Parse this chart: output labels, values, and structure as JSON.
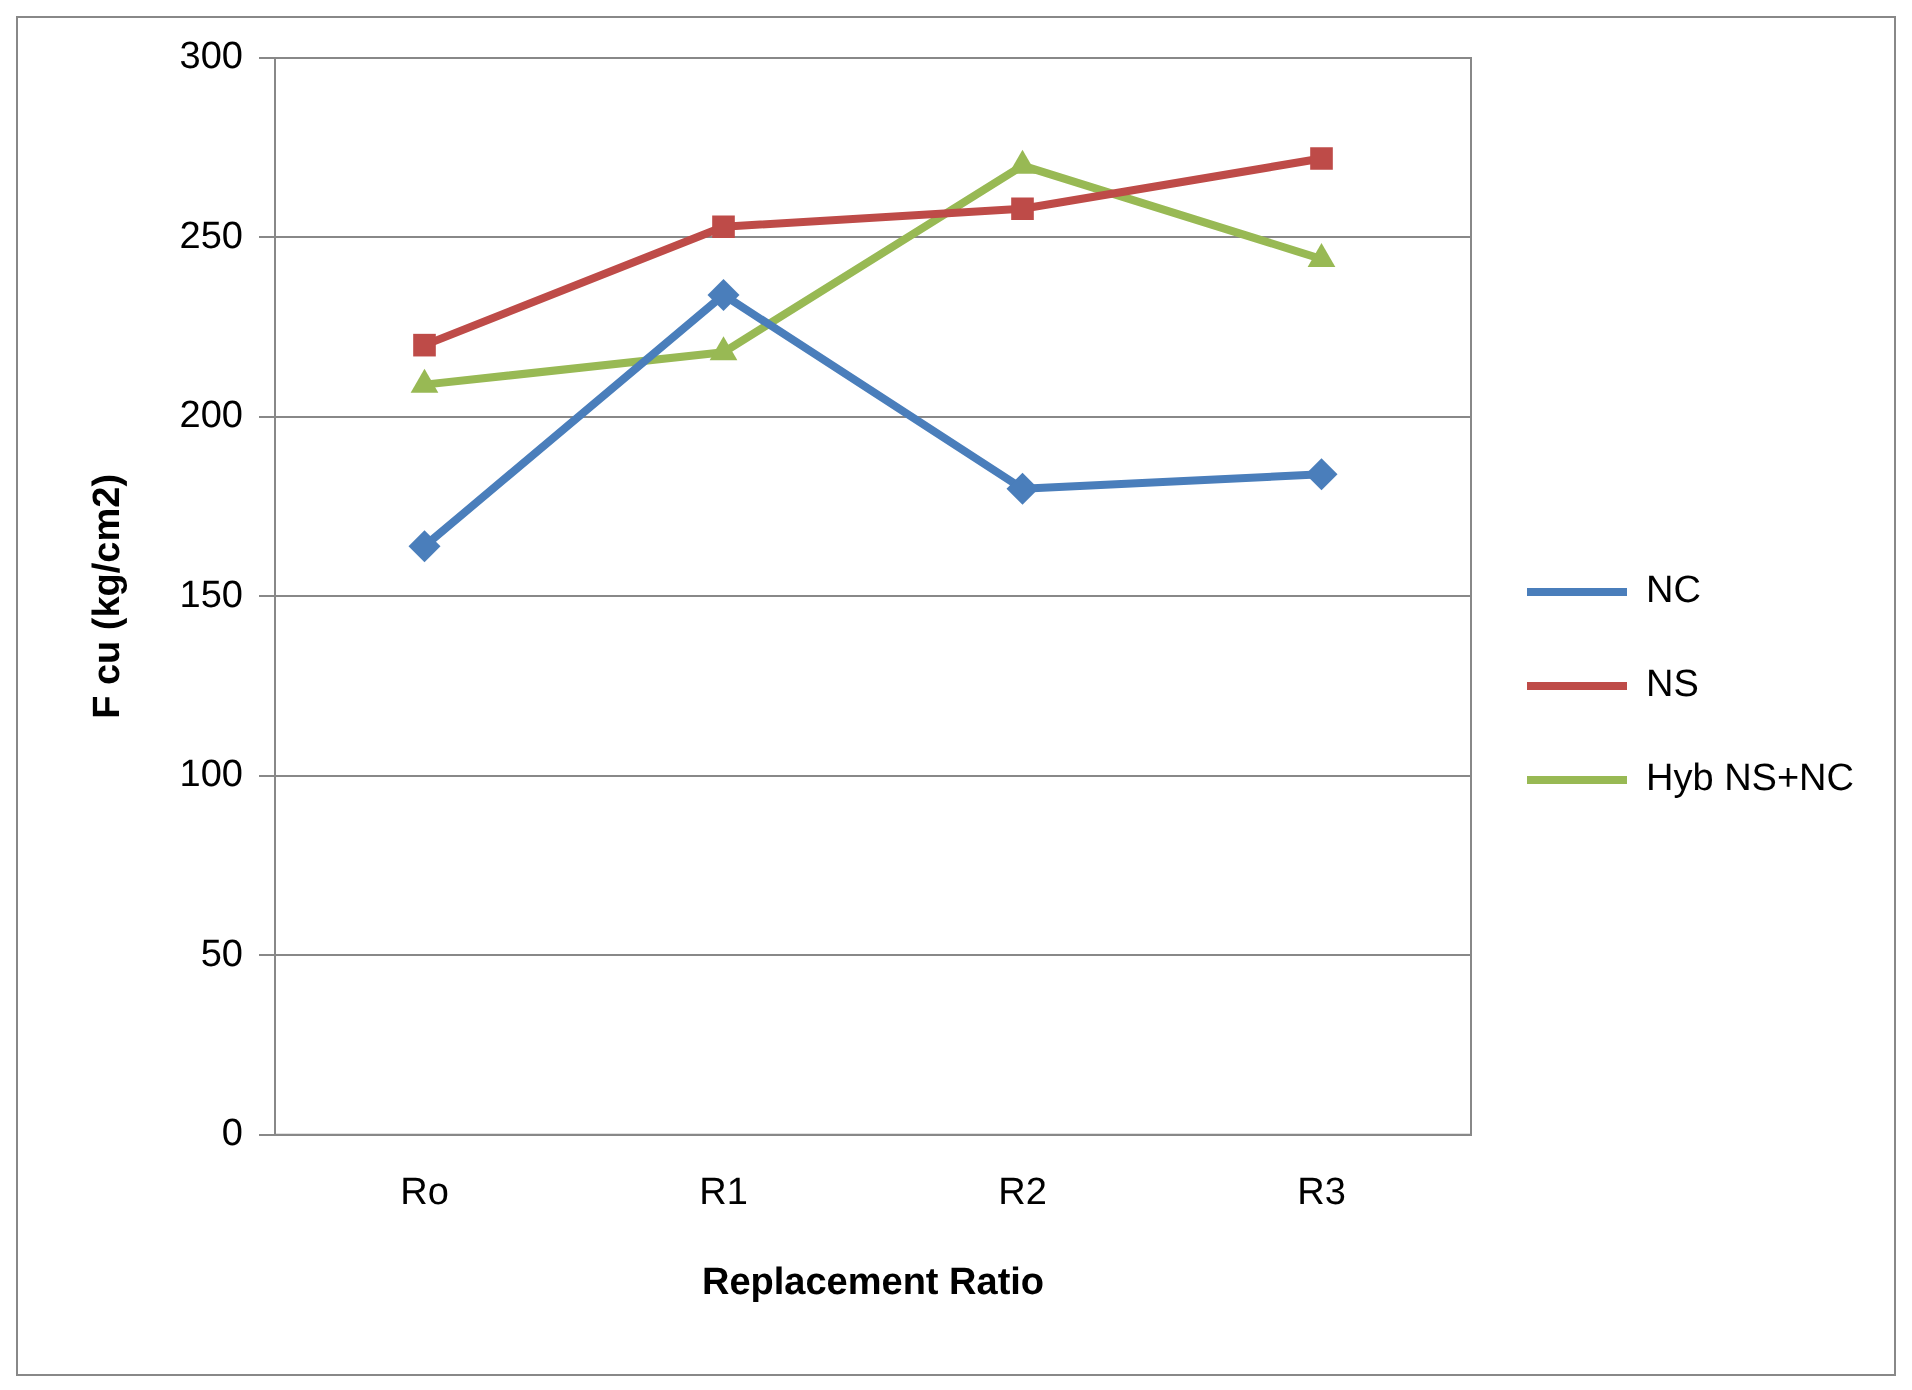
{
  "chart_data": {
    "type": "line",
    "xlabel": "Replacement Ratio",
    "ylabel": "F cu (kg/cm2)",
    "categories": [
      "Ro",
      "R1",
      "R2",
      "R3"
    ],
    "series": [
      {
        "name": "NC",
        "color": "#4a7ebb",
        "values": [
          164,
          234,
          180,
          184
        ],
        "marker": "diamond"
      },
      {
        "name": "NS",
        "color": "#be4b48",
        "values": [
          220,
          253,
          258,
          272
        ],
        "marker": "square"
      },
      {
        "name": "Hyb NS+NC",
        "color": "#98b954",
        "values": [
          209,
          218,
          270,
          244
        ],
        "marker": "triangle"
      }
    ],
    "ylim": [
      0,
      300
    ],
    "yticks": [
      0,
      50,
      100,
      150,
      200,
      250,
      300
    ],
    "grid": "y",
    "legend": "right",
    "line_style": "solid"
  }
}
